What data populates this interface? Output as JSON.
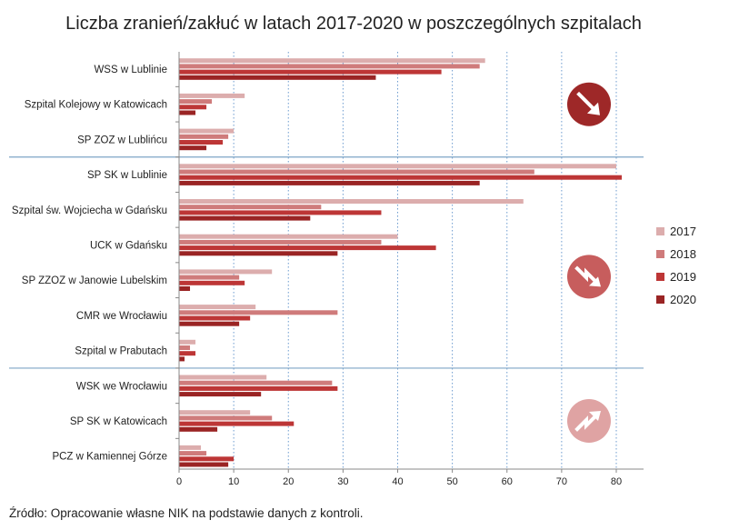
{
  "chart_data": {
    "type": "bar",
    "orientation": "horizontal",
    "title": "Liczba zranień/zakłuć w latach 2017-2020 w poszczególnych szpitalach",
    "source": "Źródło: Opracowanie własne NIK na podstawie danych z kontroli.",
    "categories": [
      "WSS w Lublinie",
      "Szpital Kolejowy w Katowicach",
      "SP ZOZ w Lublińcu",
      "SP SK w Lublinie",
      "Szpital św. Wojciecha w Gdańsku",
      "UCK w Gdańsku",
      "SP ZZOZ w Janowie Lubelskim",
      "CMR we Wrocławiu",
      "Szpital w Prabutach",
      "WSK we Wrocławiu",
      "SP SK w Katowicach",
      "PCZ w Kamiennej Górze"
    ],
    "series": [
      {
        "name": "2017",
        "color": "#dcadad",
        "values": [
          56,
          12,
          10,
          80,
          63,
          40,
          17,
          14,
          3,
          16,
          13,
          4
        ]
      },
      {
        "name": "2018",
        "color": "#cf7b7b",
        "values": [
          55,
          6,
          9,
          65,
          26,
          37,
          11,
          29,
          2,
          28,
          17,
          5
        ]
      },
      {
        "name": "2019",
        "color": "#bd3636",
        "values": [
          48,
          5,
          8,
          81,
          37,
          47,
          12,
          13,
          3,
          29,
          21,
          10
        ]
      },
      {
        "name": "2020",
        "color": "#9a2424",
        "values": [
          36,
          3,
          5,
          55,
          24,
          29,
          2,
          11,
          1,
          15,
          7,
          9
        ]
      }
    ],
    "xlim": [
      0,
      85
    ],
    "xticks": [
      0,
      10,
      20,
      30,
      40,
      50,
      60,
      70,
      80
    ],
    "grid": "vertical-dotted",
    "legend_position": "right",
    "groups": [
      {
        "categories": [
          0,
          1,
          2
        ],
        "trend": "down",
        "badge_color": "#9e2828",
        "icon": "arrow-down-right-icon"
      },
      {
        "categories": [
          3,
          4,
          5,
          6,
          7,
          8
        ],
        "trend": "down-zigzag",
        "badge_color": "#c75d5d",
        "icon": "zigzag-down-arrow-icon"
      },
      {
        "categories": [
          9,
          10,
          11
        ],
        "trend": "up-zigzag",
        "badge_color": "#dfa3a3",
        "icon": "zigzag-up-arrow-icon"
      }
    ],
    "separator_color": "#7ea4c6"
  }
}
